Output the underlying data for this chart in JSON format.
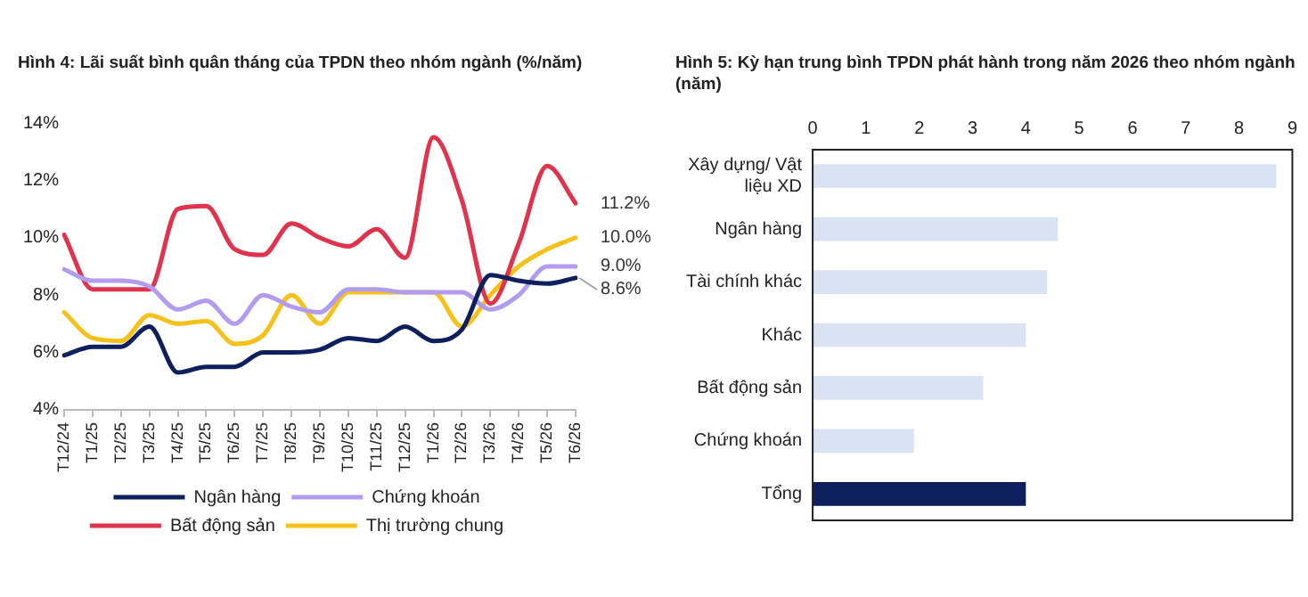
{
  "chart_data": [
    {
      "type": "line",
      "title": "Hình 4: Lãi suất bình quân tháng của TPDN theo nhóm ngành (%/năm)",
      "categories": [
        "T12/24",
        "T1/25",
        "T2/25",
        "T3/25",
        "T4/25",
        "T5/25",
        "T6/25",
        "T7/25",
        "T8/25",
        "T9/25",
        "T10/25",
        "T11/25",
        "T12/25",
        "T1/26",
        "T2/26",
        "T3/26",
        "T4/26",
        "T5/26",
        "T6/26"
      ],
      "series": [
        {
          "name": "Ngân hàng",
          "color": "#0d1f5c",
          "values": [
            5.9,
            6.2,
            6.2,
            6.9,
            5.3,
            5.5,
            5.5,
            6.0,
            6.0,
            6.1,
            6.5,
            6.4,
            6.9,
            6.4,
            6.8,
            8.7,
            8.5,
            8.4,
            8.6
          ],
          "value_labels": [
            null,
            null,
            null,
            null,
            null,
            null,
            null,
            null,
            null,
            null,
            null,
            null,
            null,
            null,
            null,
            null,
            null,
            null,
            "8.6%"
          ]
        },
        {
          "name": "Chứng khoán",
          "color": "#b19cf0",
          "values": [
            8.9,
            8.5,
            8.5,
            8.3,
            7.5,
            7.8,
            7.0,
            8.0,
            7.6,
            7.4,
            8.2,
            8.2,
            8.1,
            8.1,
            8.1,
            7.5,
            8.0,
            9.0,
            9.0
          ],
          "value_labels": [
            null,
            null,
            null,
            null,
            null,
            null,
            null,
            null,
            null,
            null,
            null,
            null,
            null,
            null,
            null,
            null,
            null,
            null,
            "9.0%"
          ]
        },
        {
          "name": "Bất động sản",
          "color": "#e0334d",
          "values": [
            10.1,
            8.2,
            8.2,
            8.2,
            11.0,
            11.1,
            9.6,
            9.4,
            10.5,
            10.0,
            9.7,
            10.3,
            9.3,
            13.5,
            11.3,
            7.7,
            9.8,
            12.5,
            11.2
          ],
          "value_labels": [
            null,
            null,
            null,
            null,
            null,
            null,
            null,
            null,
            null,
            null,
            null,
            null,
            null,
            null,
            null,
            null,
            null,
            null,
            "11.2%"
          ]
        },
        {
          "name": "Thị trường chung",
          "color": "#f7c11c",
          "values": [
            7.4,
            6.5,
            6.4,
            7.3,
            7.0,
            7.1,
            6.3,
            6.6,
            8.0,
            7.0,
            8.1,
            8.1,
            8.1,
            8.1,
            6.9,
            8.0,
            9.0,
            9.6,
            10.0
          ],
          "value_labels": [
            null,
            null,
            null,
            null,
            null,
            null,
            null,
            null,
            null,
            null,
            null,
            null,
            null,
            null,
            null,
            null,
            null,
            null,
            "10.0%"
          ]
        }
      ],
      "ylim": [
        4,
        14
      ],
      "yticks": [
        {
          "value": 4,
          "label": "4%"
        },
        {
          "value": 6,
          "label": "6%"
        },
        {
          "value": 8,
          "label": "8%"
        },
        {
          "value": 10,
          "label": "10%"
        },
        {
          "value": 12,
          "label": "12%"
        },
        {
          "value": 14,
          "label": "14%"
        }
      ],
      "grid": false,
      "legend": "bottom",
      "marker": "none",
      "line_style": "solid"
    },
    {
      "type": "bar",
      "orientation": "horizontal",
      "title": "Hình 5: Kỳ hạn trung bình TPDN phát hành trong năm 2026 theo nhóm ngành (năm)",
      "categories": [
        "Xây dựng/ Vật liệu XD",
        "Ngân hàng",
        "Tài chính khác",
        "Khác",
        "Bất động sản",
        "Chứng khoán",
        "Tổng"
      ],
      "values": [
        8.7,
        4.6,
        4.4,
        4.0,
        3.2,
        1.9,
        4.0
      ],
      "colors": [
        "#dae3f3",
        "#dae3f3",
        "#dae3f3",
        "#dae3f3",
        "#dae3f3",
        "#dae3f3",
        "#0d1f5c"
      ],
      "xlim": [
        0,
        9
      ],
      "xticks": [
        0,
        1,
        2,
        3,
        4,
        5,
        6,
        7,
        8,
        9
      ],
      "grid": false
    }
  ]
}
